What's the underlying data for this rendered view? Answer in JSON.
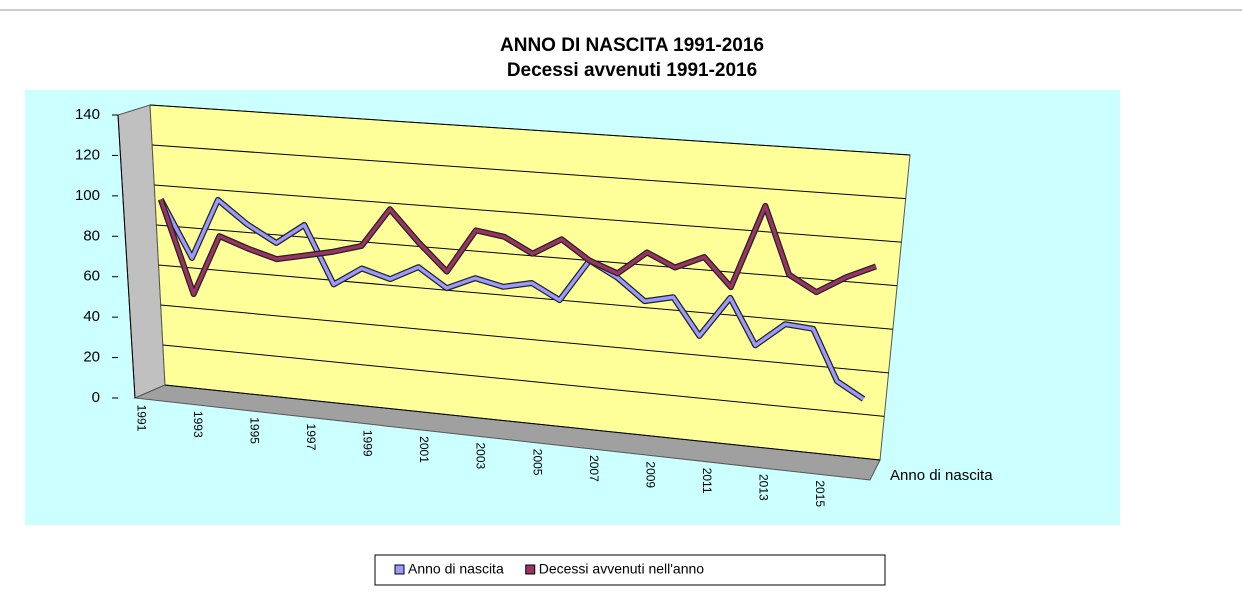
{
  "chart_data": {
    "type": "line",
    "title": "ANNO DI NASCITA 1991-2016",
    "subtitle": "Decessi  avvenuti 1991-2016",
    "depth_axis_label": "Anno di nascita",
    "categories": [
      "1991",
      null,
      "1993",
      null,
      "1995",
      null,
      "1997",
      null,
      "1999",
      null,
      "2001",
      null,
      "2003",
      null,
      "2005",
      null,
      "2007",
      null,
      "2009",
      null,
      "2011",
      null,
      "2013",
      null,
      "2015",
      null
    ],
    "series": [
      {
        "name": "Anno di nascita",
        "color": "#9999ff",
        "values": [
          93,
          65,
          95,
          84,
          76,
          86,
          58,
          67,
          63,
          70,
          61,
          67,
          64,
          67,
          60,
          80,
          73,
          63,
          66,
          49,
          68,
          47,
          58,
          57,
          34,
          27
        ]
      },
      {
        "name": "Decessi avvenuti nell'anno",
        "color": "#993366",
        "values": [
          93,
          47,
          77,
          72,
          68,
          71,
          74,
          78,
          97,
          82,
          69,
          90,
          88,
          81,
          89,
          80,
          75,
          86,
          80,
          86,
          73,
          112,
          81,
          74,
          82,
          88
        ]
      }
    ],
    "ylim": [
      0,
      140
    ],
    "yticks": [
      0,
      20,
      40,
      60,
      80,
      100,
      120,
      140
    ],
    "grid": true,
    "legend": "bottom"
  }
}
